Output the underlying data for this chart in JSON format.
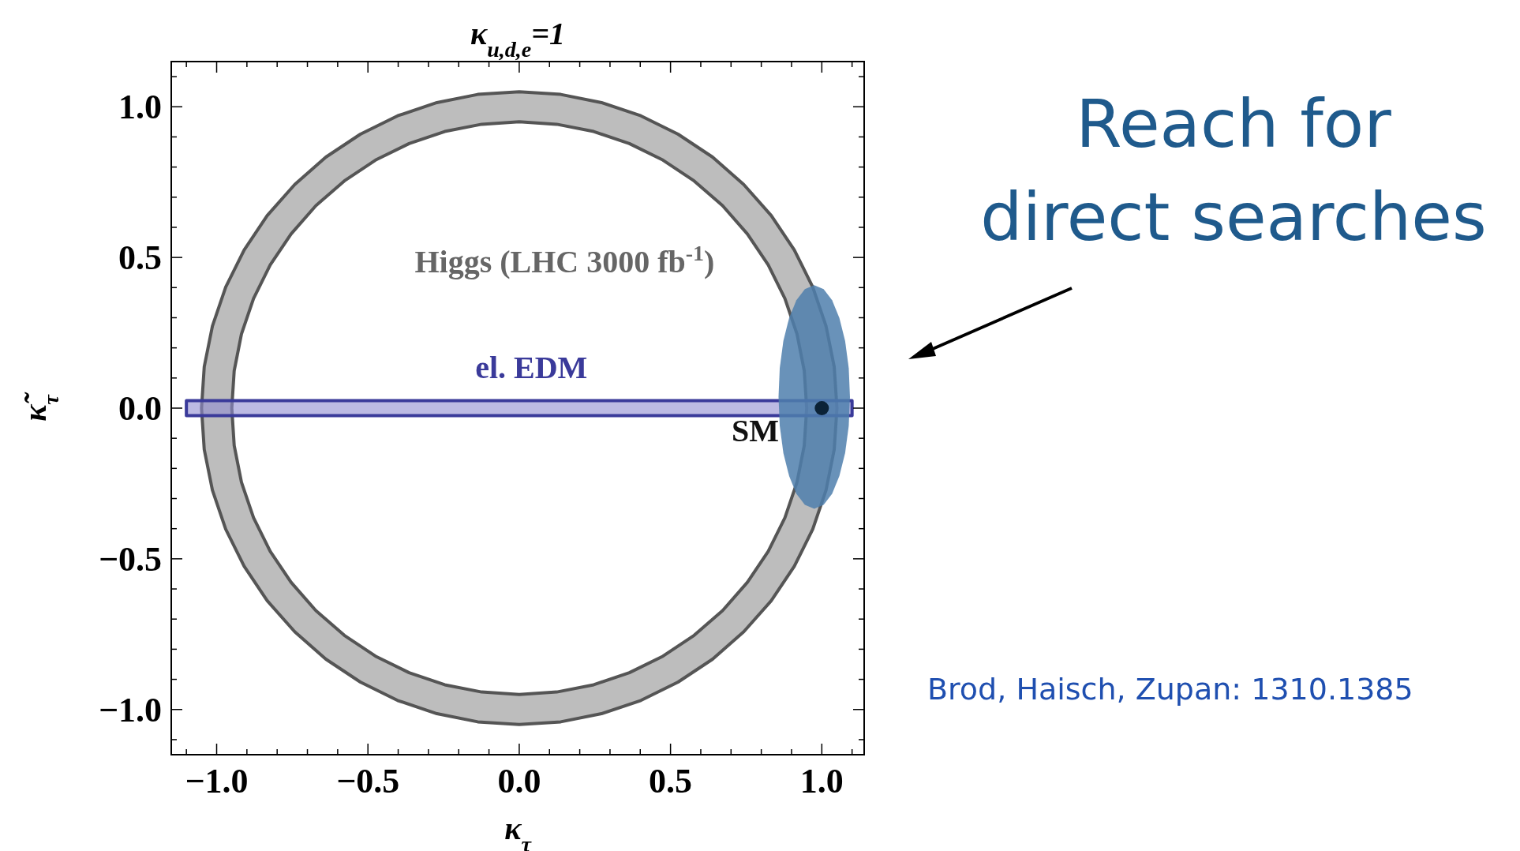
{
  "chart_data": {
    "type": "area",
    "title": "κ$_{u,d,e}$=1",
    "xlabel": "κ$_{τ}$",
    "ylabel": "κ̃$_{τ}$",
    "xlim": [
      -1.15,
      1.14
    ],
    "ylim": [
      -1.15,
      1.15
    ],
    "xticks": [
      {
        "value": -1,
        "label": "−1.0"
      },
      {
        "value": -0.5,
        "label": "−0.5"
      },
      {
        "value": 0,
        "label": "0.0"
      },
      {
        "value": 0.5,
        "label": "0.5"
      },
      {
        "value": 1,
        "label": "1.0"
      },
      {
        "value": -1.1,
        "label": null
      },
      {
        "value": -0.9,
        "label": null
      },
      {
        "value": -0.8,
        "label": null
      },
      {
        "value": -0.7,
        "label": null
      },
      {
        "value": -0.6,
        "label": null
      },
      {
        "value": -0.4,
        "label": null
      },
      {
        "value": -0.3,
        "label": null
      },
      {
        "value": -0.2,
        "label": null
      },
      {
        "value": -0.1,
        "label": null
      },
      {
        "value": 0.1,
        "label": null
      },
      {
        "value": 0.2,
        "label": null
      },
      {
        "value": 0.3,
        "label": null
      },
      {
        "value": 0.4,
        "label": null
      },
      {
        "value": 0.6,
        "label": null
      },
      {
        "value": 0.7,
        "label": null
      },
      {
        "value": 0.8,
        "label": null
      },
      {
        "value": 0.9,
        "label": null
      },
      {
        "value": 1.1,
        "label": null
      }
    ],
    "yticks": [
      {
        "value": -1,
        "label": "−1.0"
      },
      {
        "value": -0.5,
        "label": "−0.5"
      },
      {
        "value": 0,
        "label": "0.0"
      },
      {
        "value": 0.5,
        "label": "0.5"
      },
      {
        "value": 1,
        "label": "1.0"
      },
      {
        "value": -1.1,
        "label": null
      },
      {
        "value": -0.9,
        "label": null
      },
      {
        "value": -0.8,
        "label": null
      },
      {
        "value": -0.7,
        "label": null
      },
      {
        "value": -0.6,
        "label": null
      },
      {
        "value": -0.4,
        "label": null
      },
      {
        "value": -0.3,
        "label": null
      },
      {
        "value": -0.2,
        "label": null
      },
      {
        "value": -0.1,
        "label": null
      },
      {
        "value": 0.1,
        "label": null
      },
      {
        "value": 0.2,
        "label": null
      },
      {
        "value": 0.3,
        "label": null
      },
      {
        "value": 0.4,
        "label": null
      },
      {
        "value": 0.6,
        "label": null
      },
      {
        "value": 0.7,
        "label": null
      },
      {
        "value": 0.8,
        "label": null
      },
      {
        "value": 0.9,
        "label": null
      },
      {
        "value": 1.1,
        "label": null
      }
    ],
    "series": [
      {
        "color": "#bdbdbd",
        "x": [
          1.05,
          1.041,
          1.014,
          0.97,
          0.909,
          0.833,
          0.742,
          0.639,
          0.525,
          0.402,
          0.272,
          0.137,
          0,
          -0.137,
          -0.272,
          -0.402,
          -0.525,
          -0.639,
          -0.742,
          -0.833,
          -0.909,
          -0.97,
          -1.014,
          -1.041,
          -1.05,
          -1.041,
          -1.014,
          -0.97,
          -0.909,
          -0.833,
          -0.742,
          -0.639,
          -0.525,
          -0.402,
          -0.272,
          -0.137,
          0,
          0.137,
          0.272,
          0.402,
          0.525,
          0.639,
          0.742,
          0.833,
          0.909,
          0.97,
          1.014,
          1.041,
          null,
          0.95,
          0.942,
          0.918,
          0.878,
          0.823,
          0.754,
          0.672,
          0.578,
          0.475,
          0.364,
          0.246,
          0.124,
          0,
          -0.124,
          -0.246,
          -0.364,
          -0.475,
          -0.578,
          -0.672,
          -0.754,
          -0.823,
          -0.878,
          -0.918,
          -0.942,
          -0.95,
          -0.942,
          -0.918,
          -0.878,
          -0.823,
          -0.754,
          -0.672,
          -0.578,
          -0.475,
          -0.364,
          -0.246,
          -0.124,
          0,
          0.124,
          0.246,
          0.364,
          0.475,
          0.578,
          0.672,
          0.754,
          0.823,
          0.878,
          0.918,
          0.942
        ],
        "values": [
          0,
          0.137,
          0.272,
          0.402,
          0.525,
          0.639,
          0.742,
          0.833,
          0.909,
          0.97,
          1.014,
          1.041,
          1.05,
          1.041,
          1.014,
          0.97,
          0.909,
          0.833,
          0.742,
          0.639,
          0.525,
          0.402,
          0.272,
          0.137,
          0,
          -0.137,
          -0.272,
          -0.402,
          -0.525,
          -0.639,
          -0.742,
          -0.833,
          -0.909,
          -0.97,
          -1.014,
          -1.041,
          -1.05,
          -1.041,
          -1.014,
          -0.97,
          -0.909,
          -0.833,
          -0.742,
          -0.639,
          -0.525,
          -0.402,
          -0.272,
          -0.137,
          null,
          0,
          0.124,
          0.246,
          0.364,
          0.475,
          0.578,
          0.672,
          0.754,
          0.823,
          0.878,
          0.918,
          0.942,
          0.95,
          0.942,
          0.918,
          0.878,
          0.823,
          0.754,
          0.672,
          0.578,
          0.475,
          0.364,
          0.246,
          0.124,
          0,
          -0.124,
          -0.246,
          -0.364,
          -0.475,
          -0.578,
          -0.672,
          -0.754,
          -0.823,
          -0.878,
          -0.918,
          -0.942,
          -0.95,
          -0.942,
          -0.918,
          -0.878,
          -0.823,
          -0.754,
          -0.672,
          -0.578,
          -0.475,
          -0.364,
          -0.246,
          -0.124
        ]
      },
      {
        "color": "#8f8cd0",
        "x": [
          -1.1,
          1.1,
          1.1,
          -1.1
        ],
        "values": [
          -0.025,
          -0.025,
          0.025,
          0.025
        ]
      },
      {
        "color": "#4f7fad",
        "x": [
          1.093,
          1.089,
          1.077,
          1.058,
          1.034,
          1.006,
          0.975,
          0.944,
          0.916,
          0.892,
          0.873,
          0.861,
          0.857,
          0.861,
          0.873,
          0.892,
          0.916,
          0.944,
          0.975,
          1.006,
          1.034,
          1.058,
          1.077,
          1.089
        ],
        "values": [
          0.037,
          0.133,
          0.223,
          0.299,
          0.358,
          0.395,
          0.408,
          0.395,
          0.358,
          0.299,
          0.223,
          0.133,
          0.037,
          -0.059,
          -0.149,
          -0.225,
          -0.284,
          -0.321,
          -0.334,
          -0.321,
          -0.284,
          -0.225,
          -0.149,
          -0.059
        ]
      },
      {
        "type": "scatter",
        "color": "#0b2236",
        "marker": "circle",
        "x": [
          1
        ],
        "values": [
          0
        ]
      }
    ],
    "annotations": [
      "Higgs (LHC 3000 fb$^{-1}$)",
      "el. EDM",
      "SM",
      "Reach for\ndirect searches",
      "Brod, Haisch, Zupan: 1310.1385"
    ]
  }
}
